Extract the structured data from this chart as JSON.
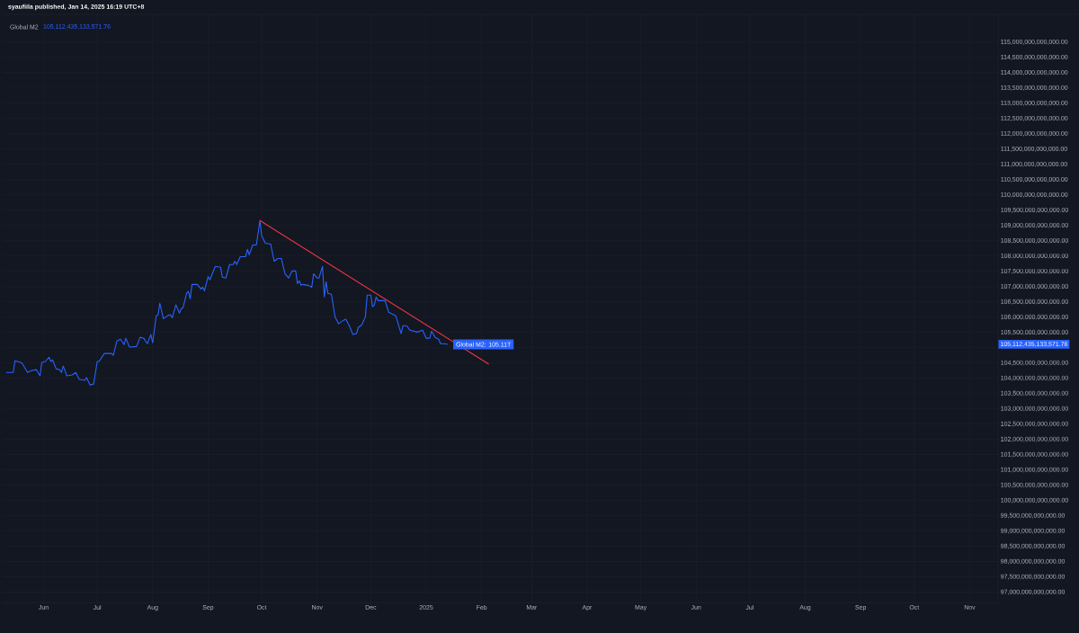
{
  "chart_data": {
    "type": "line",
    "title": "Global M2",
    "annotations": [
      "syaufiila published, Jan 14, 2025 16:19 UTC+8",
      "105,112,435,133,571.76",
      {
        "text": "Global M2: 105.11T",
        "x": "2025-01-13",
        "y": 105110000000000
      },
      "105,112,435,133,571.76"
    ],
    "x": [
      "2024-05-11",
      "2024-05-15",
      "2024-05-16",
      "2024-05-19",
      "2024-05-20",
      "2024-05-23",
      "2024-05-25",
      "2024-05-28",
      "2024-05-30",
      "2024-05-31",
      "2024-06-02",
      "2024-06-04",
      "2024-06-05",
      "2024-06-06",
      "2024-06-08",
      "2024-06-10",
      "2024-06-11",
      "2024-06-12",
      "2024-06-14",
      "2024-06-17",
      "2024-06-19",
      "2024-06-21",
      "2024-06-24",
      "2024-06-25",
      "2024-06-27",
      "2024-06-29",
      "2024-07-01",
      "2024-07-02",
      "2024-07-05",
      "2024-07-09",
      "2024-07-10",
      "2024-07-12",
      "2024-07-14",
      "2024-07-16",
      "2024-07-17",
      "2024-07-19",
      "2024-07-23",
      "2024-07-25",
      "2024-07-27",
      "2024-07-29",
      "2024-07-31",
      "2024-08-01",
      "2024-08-03",
      "2024-08-04",
      "2024-08-05",
      "2024-08-07",
      "2024-08-10",
      "2024-08-11",
      "2024-08-12",
      "2024-08-14",
      "2024-08-16",
      "2024-08-17",
      "2024-08-18",
      "2024-08-20",
      "2024-08-21",
      "2024-08-22",
      "2024-08-23",
      "2024-08-26",
      "2024-08-28",
      "2024-08-29",
      "2024-08-30",
      "2024-09-01",
      "2024-09-02",
      "2024-09-05",
      "2024-09-08",
      "2024-09-09",
      "2024-09-11",
      "2024-09-13",
      "2024-09-15",
      "2024-09-16",
      "2024-09-17",
      "2024-09-19",
      "2024-09-22",
      "2024-09-23",
      "2024-09-24",
      "2024-09-26",
      "2024-09-28",
      "2024-09-30",
      "2024-10-01",
      "2024-10-03",
      "2024-10-06",
      "2024-10-08",
      "2024-10-10",
      "2024-10-12",
      "2024-10-14",
      "2024-10-16",
      "2024-10-18",
      "2024-10-20",
      "2024-10-21",
      "2024-10-22",
      "2024-10-23",
      "2024-10-24",
      "2024-10-27",
      "2024-10-29",
      "2024-10-30",
      "2024-11-01",
      "2024-11-02",
      "2024-11-04",
      "2024-11-05",
      "2024-11-06",
      "2024-11-07",
      "2024-11-09",
      "2024-11-11",
      "2024-11-13",
      "2024-11-15",
      "2024-11-17",
      "2024-11-19",
      "2024-11-21",
      "2024-11-23",
      "2024-11-24",
      "2024-11-26",
      "2024-11-28",
      "2024-11-29",
      "2024-12-01",
      "2024-12-02",
      "2024-12-03",
      "2024-12-04",
      "2024-12-05",
      "2024-12-09",
      "2024-12-11",
      "2024-12-15",
      "2024-12-18",
      "2024-12-19",
      "2024-12-21",
      "2024-12-23",
      "2024-12-27",
      "2024-12-30",
      "2025-01-01",
      "2025-01-03",
      "2025-01-04",
      "2025-01-06",
      "2025-01-08",
      "2025-01-09",
      "2025-01-11",
      "2025-01-13"
    ],
    "series": [
      {
        "color": "#2962ff",
        "values": [
          104190000000000,
          104190000000000,
          104570000000000,
          104520000000000,
          104490000000000,
          104190000000000,
          104250000000000,
          104280000000000,
          104080000000000,
          104520000000000,
          104550000000000,
          104690000000000,
          104550000000000,
          104600000000000,
          104310000000000,
          104280000000000,
          104190000000000,
          104400000000000,
          104080000000000,
          104110000000000,
          104190000000000,
          103960000000000,
          103930000000000,
          104020000000000,
          103780000000000,
          103810000000000,
          104550000000000,
          104550000000000,
          104810000000000,
          104810000000000,
          104750000000000,
          105220000000000,
          105280000000000,
          105100000000000,
          105310000000000,
          105020000000000,
          105040000000000,
          105340000000000,
          105310000000000,
          105130000000000,
          105430000000000,
          105160000000000,
          106040000000000,
          106070000000000,
          106450000000000,
          105950000000000,
          106070000000000,
          106070000000000,
          105980000000000,
          106400000000000,
          106130000000000,
          106280000000000,
          106310000000000,
          106780000000000,
          106840000000000,
          106600000000000,
          107070000000000,
          107070000000000,
          106920000000000,
          106980000000000,
          106860000000000,
          107330000000000,
          107220000000000,
          107660000000000,
          107630000000000,
          107310000000000,
          107280000000000,
          107720000000000,
          107720000000000,
          107830000000000,
          107720000000000,
          107980000000000,
          107980000000000,
          108220000000000,
          108040000000000,
          108360000000000,
          108360000000000,
          109160000000000,
          108660000000000,
          108420000000000,
          108390000000000,
          107830000000000,
          107920000000000,
          107920000000000,
          107420000000000,
          107280000000000,
          107510000000000,
          107510000000000,
          107100000000000,
          107190000000000,
          107040000000000,
          107070000000000,
          107040000000000,
          106980000000000,
          107420000000000,
          107280000000000,
          107280000000000,
          107660000000000,
          106660000000000,
          107160000000000,
          106780000000000,
          106750000000000,
          106010000000000,
          105780000000000,
          105870000000000,
          105930000000000,
          105720000000000,
          105430000000000,
          105460000000000,
          105660000000000,
          105750000000000,
          106010000000000,
          106720000000000,
          106720000000000,
          106340000000000,
          106400000000000,
          106660000000000,
          106540000000000,
          106540000000000,
          106160000000000,
          106040000000000,
          105460000000000,
          105720000000000,
          105720000000000,
          105570000000000,
          105510000000000,
          105570000000000,
          105310000000000,
          105310000000000,
          105540000000000,
          105340000000000,
          105280000000000,
          105130000000000,
          105130000000000,
          105110000000000
        ]
      },
      {
        "type": "line",
        "color": "#f23645",
        "x": [
          "2024-09-30",
          "2025-02-05"
        ],
        "values": [
          109160000000000,
          104460000000000
        ]
      }
    ],
    "xlim": [
      "2024-05-09",
      "2025-11-17"
    ],
    "ylim": [
      96650000000000,
      115910000000000
    ],
    "xticks": [
      {
        "value": "2024-06-01",
        "label": "Jun"
      },
      {
        "value": "2024-07-01",
        "label": "Jul"
      },
      {
        "value": "2024-08-01",
        "label": "Aug"
      },
      {
        "value": "2024-09-01",
        "label": "Sep"
      },
      {
        "value": "2024-10-01",
        "label": "Oct"
      },
      {
        "value": "2024-11-01",
        "label": "Nov"
      },
      {
        "value": "2024-12-01",
        "label": "Dec"
      },
      {
        "value": "2025-01-01",
        "label": "2025"
      },
      {
        "value": "2025-02-01",
        "label": "Feb"
      },
      {
        "value": "2025-03-01",
        "label": "Mar"
      },
      {
        "value": "2025-04-01",
        "label": "Apr"
      },
      {
        "value": "2025-05-01",
        "label": "May"
      },
      {
        "value": "2025-06-01",
        "label": "Jun"
      },
      {
        "value": "2025-07-01",
        "label": "Jul"
      },
      {
        "value": "2025-08-01",
        "label": "Aug"
      },
      {
        "value": "2025-09-01",
        "label": "Sep"
      },
      {
        "value": "2025-10-01",
        "label": "Oct"
      },
      {
        "value": "2025-11-01",
        "label": "Nov"
      }
    ],
    "yticks": [
      {
        "value": 97000000000000,
        "label": "97,000,000,000,000.00"
      },
      {
        "value": 97500000000000,
        "label": "97,500,000,000,000.00"
      },
      {
        "value": 98000000000000,
        "label": "98,000,000,000,000.00"
      },
      {
        "value": 98500000000000,
        "label": "98,500,000,000,000.00"
      },
      {
        "value": 99000000000000,
        "label": "99,000,000,000,000.00"
      },
      {
        "value": 99500000000000,
        "label": "99,500,000,000,000.00"
      },
      {
        "value": 100000000000000,
        "label": "100,000,000,000,000.00"
      },
      {
        "value": 100500000000000,
        "label": "100,500,000,000,000.00"
      },
      {
        "value": 101000000000000,
        "label": "101,000,000,000,000.00"
      },
      {
        "value": 101500000000000,
        "label": "101,500,000,000,000.00"
      },
      {
        "value": 102000000000000,
        "label": "102,000,000,000,000.00"
      },
      {
        "value": 102500000000000,
        "label": "102,500,000,000,000.00"
      },
      {
        "value": 103000000000000,
        "label": "103,000,000,000,000.00"
      },
      {
        "value": 103500000000000,
        "label": "103,500,000,000,000.00"
      },
      {
        "value": 104000000000000,
        "label": "104,000,000,000,000.00"
      },
      {
        "value": 104500000000000,
        "label": "104,500,000,000,000.00"
      },
      {
        "value": 105000000000000,
        "label": null
      },
      {
        "value": 105500000000000,
        "label": "105,500,000,000,000.00"
      },
      {
        "value": 106000000000000,
        "label": "106,000,000,000,000.00"
      },
      {
        "value": 106500000000000,
        "label": "106,500,000,000,000.00"
      },
      {
        "value": 107000000000000,
        "label": "107,000,000,000,000.00"
      },
      {
        "value": 107500000000000,
        "label": "107,500,000,000,000.00"
      },
      {
        "value": 108000000000000,
        "label": "108,000,000,000,000.00"
      },
      {
        "value": 108500000000000,
        "label": "108,500,000,000,000.00"
      },
      {
        "value": 109000000000000,
        "label": "109,000,000,000,000.00"
      },
      {
        "value": 109500000000000,
        "label": "109,500,000,000,000.00"
      },
      {
        "value": 110000000000000,
        "label": "110,000,000,000,000.00"
      },
      {
        "value": 110500000000000,
        "label": "110,500,000,000,000.00"
      },
      {
        "value": 111000000000000,
        "label": "111,000,000,000,000.00"
      },
      {
        "value": 111500000000000,
        "label": "111,500,000,000,000.00"
      },
      {
        "value": 112000000000000,
        "label": "112,000,000,000,000.00"
      },
      {
        "value": 112500000000000,
        "label": "112,500,000,000,000.00"
      },
      {
        "value": 113000000000000,
        "label": "113,000,000,000,000.00"
      },
      {
        "value": 113500000000000,
        "label": "113,500,000,000,000.00"
      },
      {
        "value": 114000000000000,
        "label": "114,000,000,000,000.00"
      },
      {
        "value": 114500000000000,
        "label": "114,500,000,000,000.00"
      },
      {
        "value": 115000000000000,
        "label": "115,000,000,000,000.00"
      }
    ],
    "grid": true
  }
}
